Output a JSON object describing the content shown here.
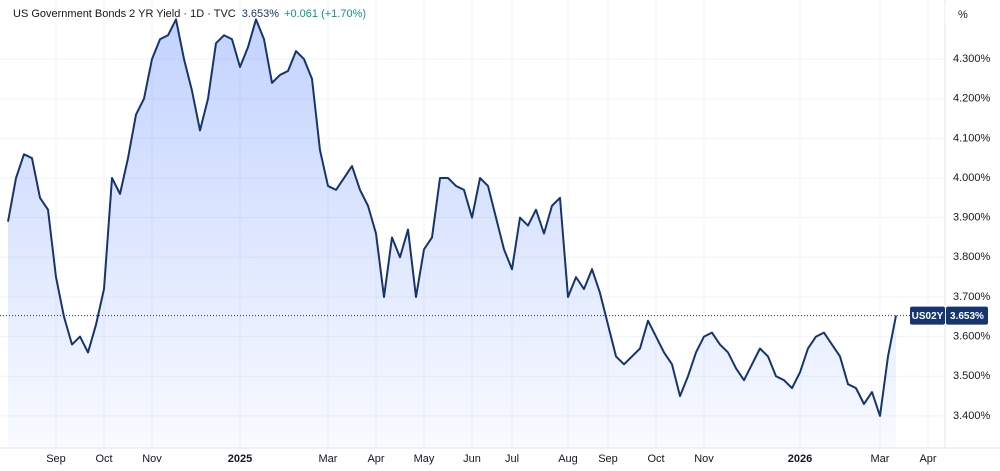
{
  "chart_data": {
    "type": "area",
    "title": "US Government Bonds 2 YR Yield · 1D · TVC",
    "last_value_label": "3.653%",
    "change_label": "+0.061 (+1.70%)",
    "unit_label": "%",
    "ticker_label": "US02Y",
    "price_label": "3.653%",
    "categories": [
      null,
      null,
      null,
      null,
      null,
      null,
      "Sep",
      null,
      null,
      null,
      null,
      null,
      "Oct",
      null,
      null,
      null,
      null,
      null,
      "Nov",
      null,
      null,
      null,
      null,
      null,
      null,
      null,
      null,
      null,
      null,
      "2025",
      null,
      null,
      null,
      null,
      null,
      null,
      null,
      null,
      null,
      null,
      "Mar",
      null,
      null,
      null,
      null,
      null,
      "Apr",
      null,
      null,
      null,
      null,
      null,
      "May",
      null,
      null,
      null,
      null,
      null,
      "Jun",
      null,
      null,
      null,
      null,
      "Jul",
      null,
      null,
      null,
      null,
      null,
      null,
      "Aug",
      null,
      null,
      null,
      null,
      "Sep",
      null,
      null,
      null,
      null,
      null,
      "Oct",
      null,
      null,
      null,
      null,
      null,
      "Nov",
      null,
      null,
      null,
      null,
      null,
      null,
      null,
      null,
      null,
      null,
      null,
      "2026",
      null,
      null,
      null,
      null,
      null,
      null,
      null,
      null,
      null,
      "Mar",
      null,
      null,
      null,
      null,
      null,
      "Apr"
    ],
    "series": [
      {
        "name": "US02Y",
        "color": "#16356e",
        "values": [
          3.89,
          4.0,
          4.06,
          4.05,
          3.95,
          3.92,
          3.75,
          3.65,
          3.58,
          3.6,
          3.56,
          3.63,
          3.72,
          4.0,
          3.96,
          4.05,
          4.16,
          4.2,
          4.3,
          4.35,
          4.36,
          4.4,
          4.3,
          4.22,
          4.12,
          4.2,
          4.34,
          4.36,
          4.35,
          4.28,
          4.33,
          4.4,
          4.35,
          4.24,
          4.26,
          4.27,
          4.32,
          4.3,
          4.25,
          4.07,
          3.98,
          3.97,
          4.0,
          4.03,
          3.97,
          3.93,
          3.86,
          3.7,
          3.85,
          3.8,
          3.87,
          3.7,
          3.82,
          3.85,
          4.0,
          4.0,
          3.98,
          3.97,
          3.9,
          4.0,
          3.98,
          3.9,
          3.82,
          3.77,
          3.9,
          3.88,
          3.92,
          3.86,
          3.93,
          3.95,
          3.7,
          3.75,
          3.72,
          3.77,
          3.71,
          3.63,
          3.55,
          3.53,
          3.55,
          3.57,
          3.64,
          3.6,
          3.56,
          3.53,
          3.45,
          3.5,
          3.56,
          3.6,
          3.61,
          3.58,
          3.56,
          3.52,
          3.49,
          3.53,
          3.57,
          3.55,
          3.5,
          3.49,
          3.47,
          3.51,
          3.57,
          3.6,
          3.61,
          3.58,
          3.55,
          3.48,
          3.47,
          3.43,
          3.46,
          3.4,
          3.55,
          3.653,
          null,
          null,
          null,
          null
        ]
      }
    ],
    "ylim": [
      3.319,
      4.449
    ],
    "yticks": [
      {
        "value": 3.4,
        "label": "3.400%"
      },
      {
        "value": 3.5,
        "label": "3.500%"
      },
      {
        "value": 3.6,
        "label": "3.600%"
      },
      {
        "value": 3.7,
        "label": "3.700%"
      },
      {
        "value": 3.8,
        "label": "3.800%"
      },
      {
        "value": 3.9,
        "label": "3.900%"
      },
      {
        "value": 4.0,
        "label": "4.000%"
      },
      {
        "value": 4.1,
        "label": "4.100%"
      },
      {
        "value": 4.2,
        "label": "4.200%"
      },
      {
        "value": 4.3,
        "label": "4.300%"
      }
    ],
    "grid": true
  }
}
